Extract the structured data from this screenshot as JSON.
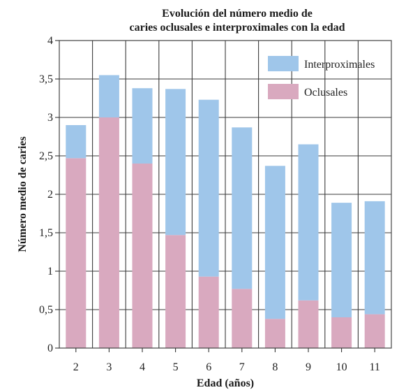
{
  "chart_data": {
    "type": "bar",
    "stacked": true,
    "title": [
      "Evolución del número medio de",
      "caries oclusales e interproximales con la edad"
    ],
    "xlabel": "Edad (años)",
    "ylabel": "Número medio de caries",
    "categories": [
      "2",
      "3",
      "4",
      "5",
      "6",
      "7",
      "8",
      "9",
      "10",
      "11"
    ],
    "ylim": [
      0,
      4
    ],
    "yticks": [
      0,
      0.5,
      1,
      1.5,
      2,
      2.5,
      3,
      3.5,
      4
    ],
    "ytick_labels": [
      "0",
      "0,5",
      "1",
      "1,5",
      "2",
      "2,5",
      "3",
      "3,5",
      "4"
    ],
    "grid": true,
    "legend_position": "top-right",
    "series": [
      {
        "name": "Oclusales",
        "color": "#d9a9bf",
        "values": [
          2.47,
          3.0,
          2.4,
          1.47,
          0.93,
          0.77,
          0.38,
          0.62,
          0.4,
          0.44
        ]
      },
      {
        "name": "Interproximales",
        "color": "#9fc6ea",
        "values": [
          0.43,
          0.55,
          0.98,
          1.9,
          2.3,
          2.1,
          1.99,
          2.03,
          1.49,
          1.47
        ]
      }
    ],
    "totals": [
      2.9,
      3.55,
      3.38,
      3.37,
      3.23,
      2.87,
      2.37,
      2.65,
      1.89,
      1.91
    ],
    "legend_order": [
      "Interproximales",
      "Oclusales"
    ]
  }
}
